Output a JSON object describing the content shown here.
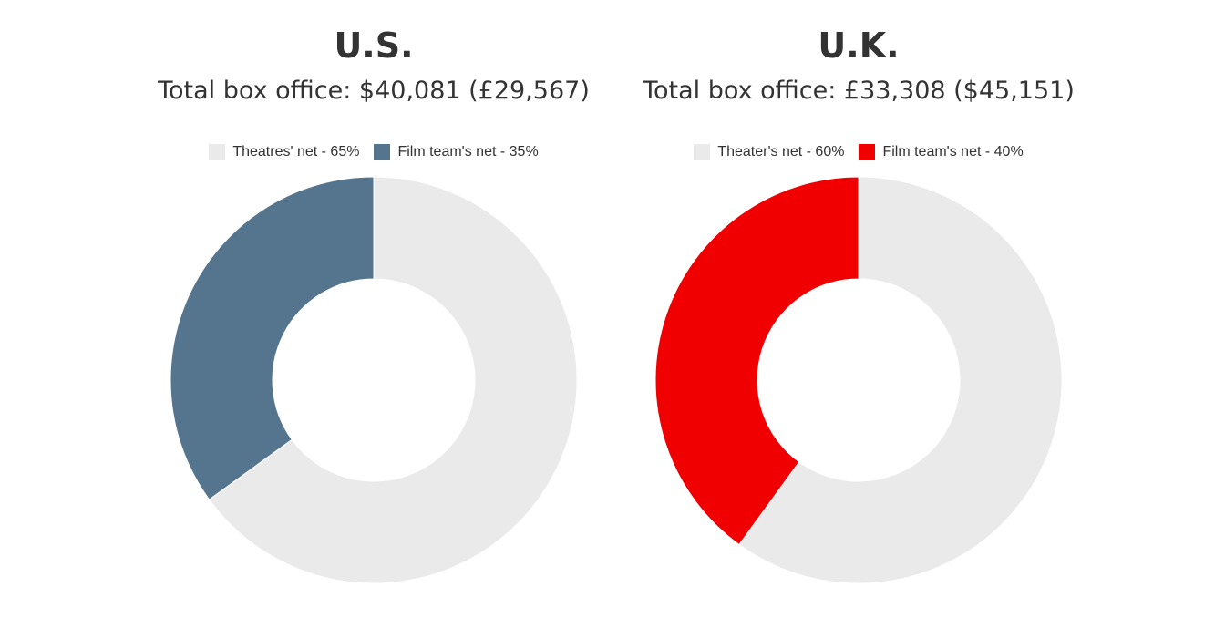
{
  "chart_data": [
    {
      "type": "pie",
      "variant": "donut",
      "title": "U.S.",
      "subtitle": "Total box office: $40,081 (£29,567)",
      "slices": [
        {
          "label": "Theatres' net - 65%",
          "value": 65,
          "color": "#eaeaea"
        },
        {
          "label": "Film team's net - 35%",
          "value": 35,
          "color": "#54758d"
        }
      ],
      "legend": "top"
    },
    {
      "type": "pie",
      "variant": "donut",
      "title": "U.K.",
      "subtitle": "Total box office: £33,308 ($45,151)",
      "slices": [
        {
          "label": "Theater's net - 60%",
          "value": 60,
          "color": "#eaeaea"
        },
        {
          "label": "Film team's net - 40%",
          "value": 40,
          "color": "#f00000"
        }
      ],
      "legend": "top"
    }
  ]
}
